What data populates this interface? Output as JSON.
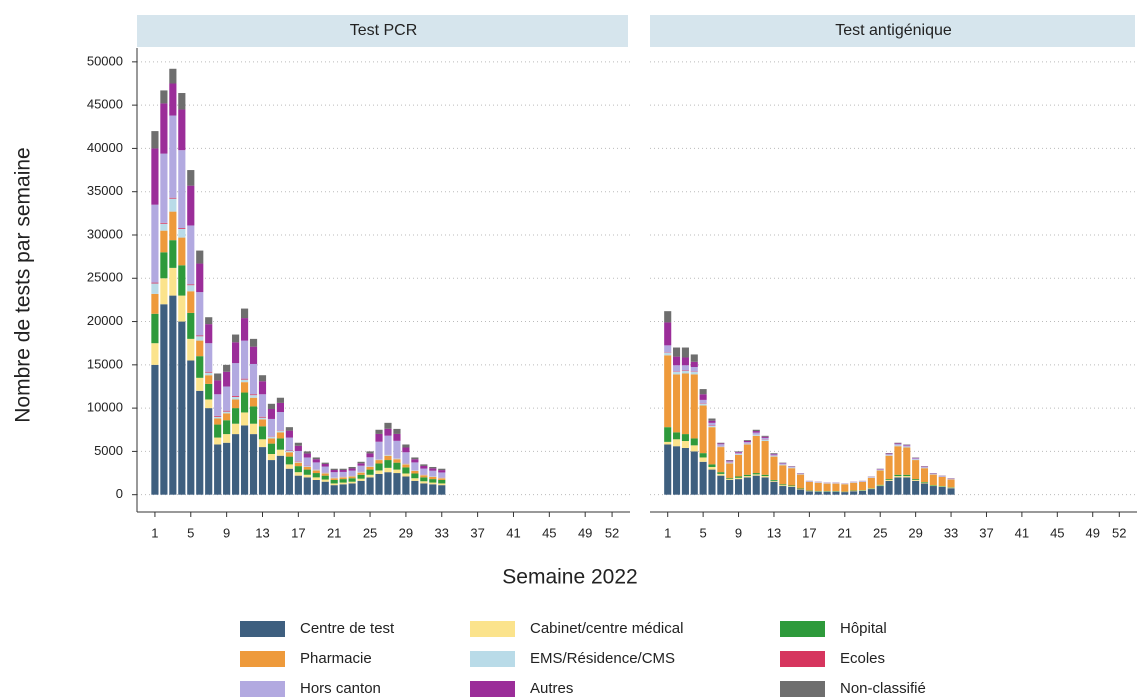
{
  "ylabel": "Nombre de tests par semaine",
  "xlabel": "Semaine 2022",
  "chart_data": [
    {
      "type": "bar",
      "stacked": true,
      "title": "Test PCR",
      "x": [
        1,
        2,
        3,
        4,
        5,
        6,
        7,
        8,
        9,
        10,
        11,
        12,
        13,
        14,
        15,
        16,
        17,
        18,
        19,
        20,
        21,
        22,
        23,
        24,
        25,
        26,
        27,
        28,
        29,
        30,
        31,
        32,
        33
      ],
      "xlim": [
        -1,
        54
      ],
      "xticks": [
        1,
        5,
        9,
        13,
        17,
        21,
        25,
        29,
        33,
        37,
        41,
        45,
        49,
        52
      ],
      "ylim": [
        -2000,
        51600
      ],
      "yticks": [
        0,
        5000,
        10000,
        15000,
        20000,
        25000,
        30000,
        35000,
        40000,
        45000,
        50000
      ],
      "grid": true,
      "series": [
        {
          "name": "Centre de test",
          "color": "#3e5f7f",
          "values": [
            15000,
            22000,
            23000,
            20000,
            15500,
            12000,
            10000,
            5800,
            6000,
            7000,
            8000,
            7000,
            5500,
            4000,
            4500,
            3000,
            2200,
            2000,
            1700,
            1500,
            1100,
            1200,
            1300,
            1600,
            2000,
            2400,
            2600,
            2500,
            2100,
            1600,
            1300,
            1200,
            1100
          ]
        },
        {
          "name": "Cabinet/centre médical",
          "color": "#fbe38c",
          "values": [
            2500,
            3000,
            3200,
            3000,
            2500,
            1500,
            1000,
            800,
            1000,
            1200,
            1500,
            1200,
            900,
            700,
            700,
            500,
            400,
            300,
            300,
            250,
            200,
            200,
            200,
            250,
            300,
            400,
            500,
            400,
            350,
            300,
            250,
            200,
            200
          ]
        },
        {
          "name": "Hôpital",
          "color": "#2e9a3b",
          "values": [
            3400,
            3000,
            3200,
            3500,
            3000,
            2500,
            1800,
            1500,
            1600,
            1800,
            2300,
            2000,
            1500,
            1200,
            1300,
            900,
            700,
            600,
            500,
            450,
            400,
            400,
            400,
            450,
            600,
            800,
            900,
            800,
            700,
            550,
            450,
            400,
            400
          ]
        },
        {
          "name": "Pharmacie",
          "color": "#ee9a3b",
          "values": [
            2300,
            2500,
            3300,
            3200,
            2500,
            1800,
            1000,
            700,
            800,
            1000,
            1200,
            1000,
            800,
            600,
            700,
            500,
            400,
            300,
            300,
            250,
            200,
            200,
            200,
            250,
            300,
            400,
            500,
            400,
            350,
            300,
            250,
            250,
            200
          ]
        },
        {
          "name": "EMS/Résidence/CMS",
          "color": "#b9dbe8",
          "values": [
            1200,
            800,
            1500,
            1000,
            700,
            500,
            300,
            200,
            200,
            300,
            300,
            300,
            200,
            200,
            200,
            150,
            100,
            100,
            100,
            80,
            80,
            60,
            60,
            80,
            100,
            100,
            100,
            100,
            80,
            60,
            50,
            50,
            50
          ]
        },
        {
          "name": "Ecoles",
          "color": "#d6355e",
          "values": [
            100,
            100,
            100,
            100,
            100,
            100,
            100,
            100,
            100,
            100,
            100,
            100,
            100,
            50,
            50,
            50,
            50,
            50,
            30,
            20,
            20,
            20,
            20,
            20,
            20,
            20,
            20,
            20,
            20,
            20,
            20,
            20,
            20
          ]
        },
        {
          "name": "Hors canton",
          "color": "#b2a9e0",
          "values": [
            9000,
            8000,
            9500,
            9000,
            6800,
            5000,
            3300,
            2500,
            2800,
            3800,
            4400,
            3500,
            2600,
            2000,
            2100,
            1500,
            1200,
            950,
            800,
            700,
            600,
            550,
            600,
            700,
            1000,
            2000,
            2200,
            2000,
            1300,
            900,
            700,
            650,
            600
          ]
        },
        {
          "name": "Autres",
          "color": "#9b2d99",
          "values": [
            6500,
            5800,
            3700,
            4700,
            4600,
            3300,
            2200,
            1600,
            1700,
            2400,
            2600,
            2000,
            1500,
            1150,
            1050,
            800,
            600,
            450,
            370,
            300,
            250,
            220,
            250,
            280,
            450,
            900,
            800,
            800,
            550,
            370,
            300,
            270,
            270
          ]
        },
        {
          "name": "Non-classifié",
          "color": "#6e6e6e",
          "values": [
            2000,
            1500,
            1700,
            1900,
            1800,
            1500,
            800,
            800,
            800,
            900,
            1100,
            900,
            700,
            600,
            600,
            400,
            350,
            250,
            200,
            150,
            150,
            150,
            170,
            170,
            230,
            480,
            680,
            580,
            350,
            200,
            180,
            160,
            160
          ]
        }
      ]
    },
    {
      "type": "bar",
      "stacked": true,
      "title": "Test antigénique",
      "x": [
        1,
        2,
        3,
        4,
        5,
        6,
        7,
        8,
        9,
        10,
        11,
        12,
        13,
        14,
        15,
        16,
        17,
        18,
        19,
        20,
        21,
        22,
        23,
        24,
        25,
        26,
        27,
        28,
        29,
        30,
        31,
        32,
        33
      ],
      "xlim": [
        -1,
        54
      ],
      "xticks": [
        1,
        5,
        9,
        13,
        17,
        21,
        25,
        29,
        33,
        37,
        41,
        45,
        49,
        52
      ],
      "ylim": [
        -2000,
        51600
      ],
      "yticks": [
        0,
        5000,
        10000,
        15000,
        20000,
        25000,
        30000,
        35000,
        40000,
        45000,
        50000
      ],
      "grid": true,
      "series": [
        {
          "values": [
            5800,
            5600,
            5400,
            5000,
            3800,
            2900,
            2200,
            1700,
            1800,
            2000,
            2200,
            2000,
            1500,
            1000,
            900,
            600,
            400,
            350,
            350,
            350,
            300,
            400,
            450,
            650,
            1000,
            1600,
            2000,
            2000,
            1600,
            1300,
            1000,
            900,
            750
          ]
        },
        {
          "values": [
            300,
            800,
            800,
            700,
            500,
            300,
            200,
            100,
            150,
            150,
            150,
            150,
            100,
            100,
            80,
            60,
            40,
            40,
            40,
            40,
            30,
            40,
            40,
            50,
            70,
            100,
            150,
            150,
            100,
            80,
            60,
            50,
            50
          ]
        },
        {
          "values": [
            1700,
            800,
            800,
            800,
            500,
            300,
            200,
            100,
            150,
            150,
            150,
            150,
            100,
            100,
            80,
            60,
            40,
            40,
            40,
            40,
            30,
            40,
            40,
            50,
            70,
            100,
            150,
            150,
            100,
            80,
            60,
            50,
            50
          ]
        },
        {
          "values": [
            8300,
            6700,
            7000,
            7400,
            5500,
            4300,
            2900,
            1700,
            2500,
            3500,
            4300,
            3900,
            2700,
            2200,
            2000,
            1600,
            1000,
            950,
            850,
            850,
            850,
            900,
            950,
            1200,
            1650,
            2700,
            3300,
            3150,
            2200,
            1600,
            1200,
            1050,
            900
          ]
        },
        {
          "values": [
            300,
            300,
            300,
            300,
            200,
            150,
            100,
            100,
            100,
            100,
            150,
            150,
            100,
            80,
            80,
            60,
            40,
            40,
            40,
            40,
            30,
            40,
            40,
            50,
            60,
            80,
            100,
            100,
            80,
            60,
            50,
            40,
            40
          ]
        },
        {
          "values": [
            50,
            50,
            50,
            50,
            50,
            50,
            30,
            30,
            30,
            30,
            30,
            30,
            20,
            20,
            20,
            20,
            10,
            10,
            10,
            10,
            10,
            10,
            10,
            10,
            10,
            10,
            10,
            10,
            10,
            10,
            10,
            10,
            10
          ]
        },
        {
          "values": [
            800,
            700,
            600,
            500,
            400,
            300,
            200,
            120,
            120,
            150,
            200,
            180,
            120,
            100,
            70,
            50,
            40,
            40,
            40,
            40,
            30,
            40,
            40,
            50,
            70,
            100,
            150,
            130,
            110,
            90,
            60,
            50,
            50
          ]
        },
        {
          "values": [
            2650,
            1000,
            900,
            600,
            650,
            250,
            100,
            80,
            80,
            120,
            170,
            140,
            80,
            50,
            40,
            30,
            20,
            20,
            20,
            20,
            10,
            20,
            20,
            20,
            40,
            60,
            80,
            60,
            60,
            50,
            40,
            30,
            30
          ]
        },
        {
          "values": [
            1300,
            1050,
            1150,
            850,
            600,
            250,
            70,
            70,
            70,
            100,
            150,
            100,
            80,
            50,
            30,
            20,
            10,
            10,
            10,
            10,
            10,
            10,
            10,
            20,
            30,
            50,
            60,
            50,
            40,
            30,
            20,
            20,
            20
          ]
        }
      ]
    }
  ]
}
